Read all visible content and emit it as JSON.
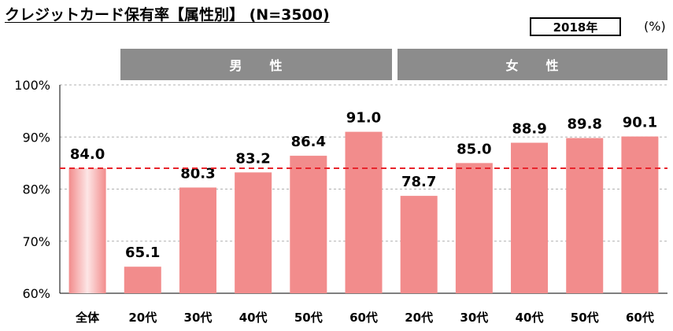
{
  "title": "クレジットカード保有率【属性別】 (N=3500)",
  "year_label": "2018年",
  "unit_label": "(%)",
  "groups": [
    {
      "label": "男　　性"
    },
    {
      "label": "女　　性"
    }
  ],
  "colors": {
    "bar": "#f28c8c",
    "reference_line": "#e8242c",
    "group_header": "#8c8c8c"
  },
  "chart_data": {
    "type": "bar",
    "categories": [
      "全体",
      "20代",
      "30代",
      "40代",
      "50代",
      "60代",
      "20代",
      "30代",
      "40代",
      "50代",
      "60代"
    ],
    "values": [
      84.0,
      65.1,
      80.3,
      83.2,
      86.4,
      91.0,
      78.7,
      85.0,
      88.9,
      89.8,
      90.1
    ],
    "value_labels": [
      "84.0",
      "65.1",
      "80.3",
      "83.2",
      "86.4",
      "91.0",
      "78.7",
      "85.0",
      "88.9",
      "89.8",
      "90.1"
    ],
    "ylim": [
      60,
      100
    ],
    "yticks": [
      60,
      70,
      80,
      90,
      100
    ],
    "ytick_labels": [
      "60%",
      "70%",
      "80%",
      "90%",
      "100%"
    ],
    "reference_line": {
      "value": 84.0,
      "style": "dashed"
    },
    "grid": true,
    "title": "クレジットカード保有率【属性別】 (N=3500)",
    "xlabel": "",
    "ylabel": ""
  }
}
